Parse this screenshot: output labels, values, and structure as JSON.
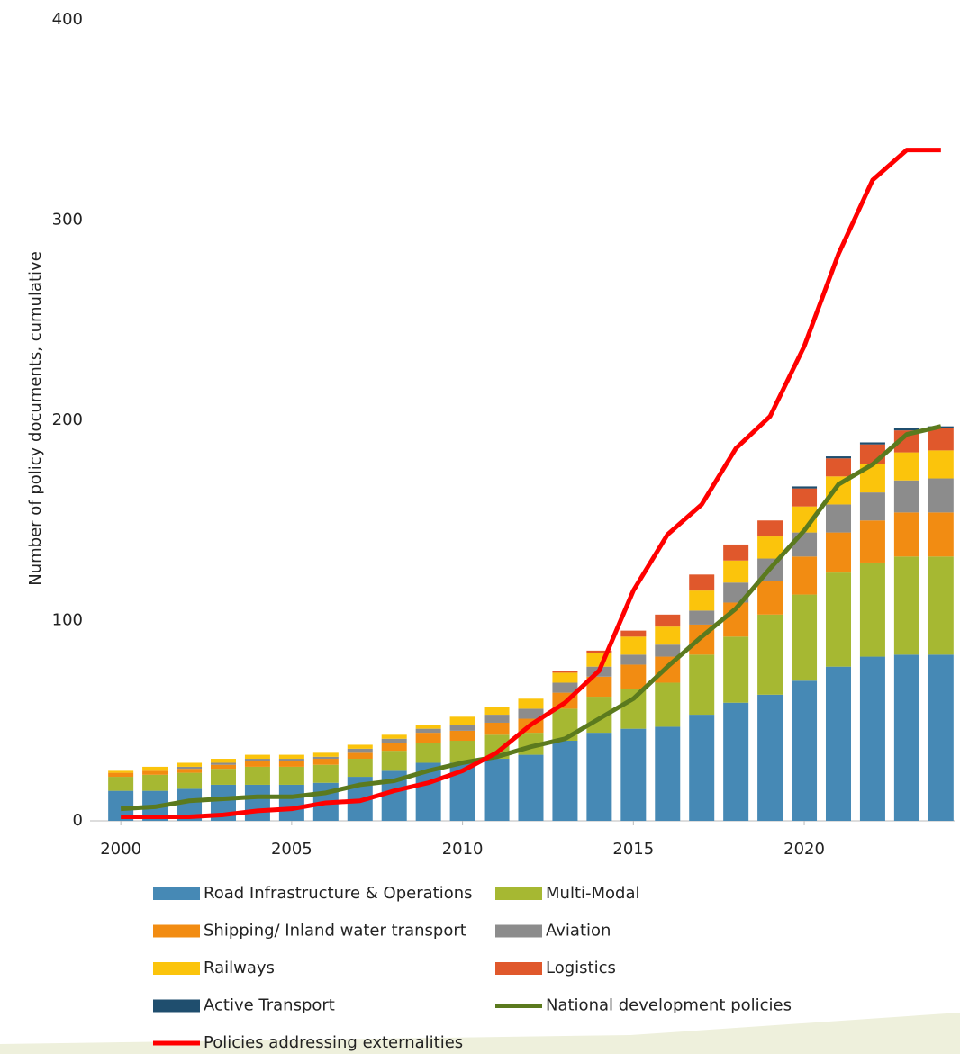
{
  "chart_data": {
    "type": "bar",
    "y_label": "Number of policy documents, cumulative",
    "x": [
      2000,
      2001,
      2002,
      2003,
      2004,
      2005,
      2006,
      2007,
      2008,
      2009,
      2010,
      2011,
      2012,
      2013,
      2014,
      2015,
      2016,
      2017,
      2018,
      2019,
      2020,
      2021,
      2022,
      2023,
      2024
    ],
    "xlim": [
      1999.1,
      2024.4
    ],
    "xticks": [
      2000,
      2005,
      2010,
      2015,
      2020
    ],
    "ylim": [
      0,
      400
    ],
    "yticks": [
      0,
      100,
      200,
      300,
      400
    ],
    "grid": false,
    "stacked": true,
    "legend": "bottom",
    "series": [
      {
        "name": "Road Infrastructure & Operations",
        "color": "#4689b5",
        "values": [
          15,
          15,
          16,
          18,
          18,
          18,
          19,
          22,
          25,
          29,
          29,
          31,
          33,
          40,
          44,
          46,
          47,
          53,
          59,
          63,
          70,
          77,
          82,
          83,
          83
        ]
      },
      {
        "name": "Multi-Modal",
        "color": "#a6b832",
        "values": [
          7,
          8,
          8,
          8,
          9,
          9,
          9,
          9,
          10,
          10,
          11,
          12,
          11,
          16,
          18,
          20,
          22,
          30,
          33,
          40,
          43,
          47,
          47,
          49,
          49
        ]
      },
      {
        "name": "Shipping/ Inland water transport",
        "color": "#f28c12",
        "values": [
          2,
          2,
          2,
          2,
          3,
          3,
          3,
          3,
          4,
          5,
          5,
          6,
          7,
          8,
          10,
          12,
          13,
          15,
          17,
          17,
          19,
          20,
          21,
          22,
          22
        ]
      },
      {
        "name": "Aviation",
        "color": "#8c8c8c",
        "values": [
          0,
          0,
          1,
          1,
          1,
          1,
          1,
          2,
          2,
          2,
          3,
          4,
          5,
          5,
          5,
          5,
          6,
          7,
          10,
          11,
          12,
          14,
          14,
          16,
          17
        ]
      },
      {
        "name": "Railways",
        "color": "#fbc40c",
        "values": [
          1,
          2,
          2,
          2,
          2,
          2,
          2,
          2,
          2,
          2,
          4,
          4,
          5,
          5,
          7,
          9,
          9,
          10,
          11,
          11,
          13,
          14,
          14,
          14,
          14
        ]
      },
      {
        "name": "Logistics",
        "color": "#e0582c",
        "values": [
          0,
          0,
          0,
          0,
          0,
          0,
          0,
          0,
          0,
          0,
          0,
          0,
          0,
          1,
          1,
          3,
          6,
          8,
          8,
          8,
          9,
          9,
          10,
          11,
          11
        ]
      },
      {
        "name": "Active Transport",
        "color": "#1f4e6e",
        "values": [
          0,
          0,
          0,
          0,
          0,
          0,
          0,
          0,
          0,
          0,
          0,
          0,
          0,
          0,
          0,
          0,
          0,
          0,
          0,
          0,
          1,
          1,
          1,
          1,
          1
        ]
      },
      {
        "name": "National development policies",
        "type": "line",
        "color": "#5b7a1e",
        "values": [
          6,
          7,
          10,
          11,
          12,
          12,
          14,
          18,
          20,
          25,
          29,
          32,
          37,
          41,
          51,
          61,
          77,
          92,
          106,
          126,
          145,
          168,
          178,
          193,
          197
        ]
      },
      {
        "name": "Policies addressing externalities",
        "type": "line",
        "color": "#ff0000",
        "values": [
          2,
          2,
          2,
          3,
          5,
          6,
          9,
          10,
          15,
          19,
          25,
          34,
          48,
          59,
          75,
          115,
          143,
          158,
          186,
          202,
          237,
          283,
          320,
          335,
          335
        ]
      }
    ]
  }
}
